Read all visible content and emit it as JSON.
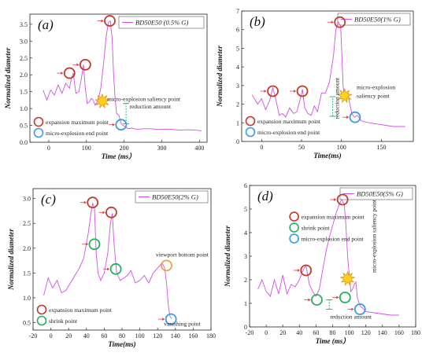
{
  "colors": {
    "series": "#d24fe0",
    "expansion": "#c0392b",
    "shrink": "#27ae60",
    "explosion_end": "#3a9be0",
    "viewport": "#f0a040",
    "burst_fill": "#ffd21f",
    "burst_stroke": "#d08000",
    "arrow": "#e0414d",
    "reduction": "#2bb673"
  },
  "chart_data": [
    {
      "type": "line",
      "panel": "(a)",
      "legend": "BD50E50 (0.5% G)",
      "xlabel": "Time (ms）",
      "ylabel": "Normalized diameter",
      "xlim": [
        -50,
        420
      ],
      "ylim": [
        0,
        3.8
      ],
      "xticks": [
        0,
        100,
        200,
        300,
        400
      ],
      "yticks": [
        0.0,
        0.5,
        1.0,
        1.5,
        2.0,
        2.5,
        3.0,
        3.5
      ],
      "tick_decimals": 1,
      "x": [
        -15,
        -5,
        5,
        15,
        25,
        35,
        45,
        55,
        60,
        65,
        72,
        80,
        86,
        92,
        97,
        102,
        108,
        113,
        118,
        123,
        128,
        133,
        138,
        145,
        152,
        158,
        163,
        168,
        172,
        176,
        180,
        186,
        192,
        198,
        204,
        210,
        220,
        235,
        250,
        270,
        290,
        310,
        330,
        350,
        370,
        390,
        405
      ],
      "y": [
        1.55,
        1.25,
        1.55,
        1.4,
        1.7,
        1.45,
        1.75,
        1.6,
        1.9,
        2.05,
        1.45,
        1.5,
        1.85,
        2.3,
        1.6,
        1.15,
        1.2,
        1.3,
        1.25,
        1.1,
        1.2,
        1.35,
        1.6,
        2.3,
        3.1,
        3.55,
        3.6,
        3.1,
        2.0,
        1.3,
        0.85,
        0.8,
        0.55,
        0.5,
        0.45,
        0.4,
        0.42,
        0.38,
        0.4,
        0.4,
        0.38,
        0.39,
        0.38,
        0.36,
        0.37,
        0.36,
        0.34
      ],
      "markers": [
        {
          "kind": "expansion",
          "x": 55,
          "y": 2.05
        },
        {
          "kind": "expansion",
          "x": 97,
          "y": 2.3
        },
        {
          "kind": "expansion",
          "x": 162,
          "y": 3.6
        },
        {
          "kind": "explosion_end",
          "x": 192,
          "y": 0.52
        }
      ],
      "burst": {
        "x": 142,
        "y": 1.22
      },
      "annotations": [
        {
          "text": "micro-explosion saliency point",
          "x": 155,
          "y": 1.22
        },
        {
          "text": "reduction amount",
          "x": 214,
          "y": 1.0
        }
      ],
      "reduction_bar": {
        "x": 205,
        "y1": 0.55,
        "y2": 1.15
      },
      "legend_items": [
        {
          "kind": "expansion",
          "label": "expansion maximum point"
        },
        {
          "kind": "explosion_end",
          "label": "micro-explosion end point"
        }
      ]
    },
    {
      "type": "line",
      "panel": "(b)",
      "legend": "BD50E50(1% G)",
      "xlabel": "Time(ms)",
      "ylabel": "Normalized diameter",
      "xlim": [
        -25,
        190
      ],
      "ylim": [
        0,
        7
      ],
      "xticks": [
        0,
        50,
        100,
        150
      ],
      "yticks": [
        0,
        1,
        2,
        3,
        4,
        5,
        6,
        7
      ],
      "tick_decimals": 0,
      "x": [
        -12,
        -5,
        0,
        5,
        10,
        14,
        18,
        22,
        26,
        30,
        35,
        40,
        44,
        48,
        51,
        54,
        58,
        62,
        66,
        70,
        75,
        80,
        85,
        90,
        93,
        96,
        99,
        102,
        104,
        106,
        108,
        110,
        113,
        116,
        120,
        125,
        135,
        150,
        165,
        180
      ],
      "y": [
        2.5,
        2.0,
        2.3,
        1.7,
        2.2,
        2.9,
        2.2,
        1.4,
        1.5,
        1.3,
        1.8,
        1.5,
        1.6,
        2.2,
        2.8,
        1.8,
        1.5,
        1.4,
        1.9,
        1.6,
        2.6,
        2.6,
        3.2,
        4.6,
        6.0,
        6.4,
        6.2,
        3.0,
        2.3,
        2.5,
        2.6,
        2.1,
        1.5,
        1.3,
        1.4,
        1.1,
        1.0,
        0.9,
        0.8,
        0.8
      ],
      "markers": [
        {
          "kind": "expansion",
          "x": 14,
          "y": 2.7
        },
        {
          "kind": "expansion",
          "x": 51,
          "y": 2.7
        },
        {
          "kind": "expansion",
          "x": 98,
          "y": 6.4
        },
        {
          "kind": "explosion_end",
          "x": 117,
          "y": 1.3
        }
      ],
      "burst": {
        "x": 104,
        "y": 2.45
      },
      "annotations": [
        {
          "text": "micro-explosion",
          "x": 119,
          "y": 2.8
        },
        {
          "text": "saliency point",
          "x": 119,
          "y": 2.35
        },
        {
          "text": "reduction amount",
          "x": 97,
          "y": 1.2
        }
      ],
      "reduction_bar": {
        "x": 89,
        "y1": 1.35,
        "y2": 2.4
      },
      "legend_items": [
        {
          "kind": "expansion",
          "label": "expansion maximum point"
        },
        {
          "kind": "explosion_end",
          "label": "micro-explosion end point"
        }
      ]
    },
    {
      "type": "line",
      "panel": "(c)",
      "legend": "BD50E50(2% G)",
      "xlabel": "Time(ms)",
      "ylabel": "Normalized diameter",
      "xlim": [
        -20,
        180
      ],
      "ylim": [
        0.35,
        3.2
      ],
      "xticks": [
        -20,
        0,
        20,
        40,
        60,
        80,
        100,
        120,
        140,
        160,
        180
      ],
      "yticks": [
        0.5,
        1.0,
        1.5,
        2.0,
        2.5,
        3.0
      ],
      "tick_decimals": 1,
      "x": [
        -8,
        -3,
        2,
        7,
        12,
        17,
        22,
        27,
        32,
        37,
        42,
        45,
        47,
        49,
        51,
        53,
        56,
        60,
        64,
        67,
        69,
        71,
        74,
        78,
        82,
        86,
        90,
        95,
        100,
        105,
        110,
        115,
        120,
        125,
        128,
        130,
        132,
        134,
        136
      ],
      "y": [
        1.05,
        1.4,
        1.2,
        1.35,
        1.1,
        1.15,
        1.3,
        1.45,
        1.6,
        1.8,
        2.3,
        2.7,
        2.9,
        2.8,
        1.9,
        1.5,
        1.35,
        1.5,
        1.9,
        2.5,
        2.7,
        2.1,
        1.5,
        1.35,
        1.4,
        1.45,
        1.55,
        1.3,
        1.35,
        1.45,
        1.3,
        1.5,
        1.6,
        1.7,
        1.6,
        1.3,
        0.85,
        0.62,
        0.58
      ],
      "markers": [
        {
          "kind": "expansion",
          "x": 47,
          "y": 2.92
        },
        {
          "kind": "expansion",
          "x": 68,
          "y": 2.72
        },
        {
          "kind": "shrink",
          "x": 49,
          "y": 2.08
        },
        {
          "kind": "shrink",
          "x": 73,
          "y": 1.58
        },
        {
          "kind": "viewport",
          "x": 130,
          "y": 1.65
        },
        {
          "kind": "explosion_end",
          "x": 135,
          "y": 0.57
        }
      ],
      "annotations": [
        {
          "text": "viewport bottom point",
          "x": 118,
          "y": 1.83
        },
        {
          "text": "vanishing point",
          "x": 127,
          "y": 0.44
        }
      ],
      "legend_items": [
        {
          "kind": "expansion",
          "label": "expansion maximum point"
        },
        {
          "kind": "shrink",
          "label": "shrink point"
        }
      ]
    },
    {
      "type": "line",
      "panel": "(d)",
      "legend": "BD50E50(5% G)",
      "xlabel": "Time (ms）",
      "ylabel": "Normalized diameter",
      "xlim": [
        -20,
        180
      ],
      "ylim": [
        0,
        6
      ],
      "xticks": [
        -20,
        0,
        20,
        40,
        60,
        80,
        100,
        120,
        140,
        160,
        180
      ],
      "yticks": [
        0,
        1,
        2,
        3,
        4,
        5,
        6
      ],
      "tick_decimals": 0,
      "x": [
        -10,
        -5,
        0,
        5,
        10,
        15,
        20,
        25,
        30,
        35,
        40,
        43,
        46,
        48,
        52,
        56,
        60,
        64,
        68,
        72,
        76,
        80,
        84,
        88,
        91,
        94,
        96,
        98,
        100,
        102,
        104,
        106,
        108,
        110,
        113,
        116,
        120,
        130,
        140,
        150,
        160
      ],
      "y": [
        1.6,
        2.0,
        1.5,
        1.3,
        2.0,
        1.4,
        2.2,
        1.4,
        1.8,
        1.7,
        2.0,
        2.3,
        2.5,
        2.6,
        1.8,
        1.5,
        1.3,
        1.6,
        2.4,
        3.2,
        3.8,
        4.3,
        4.8,
        5.2,
        5.4,
        5.2,
        4.3,
        3.0,
        2.2,
        1.5,
        1.6,
        1.8,
        1.9,
        1.2,
        0.9,
        0.8,
        0.65,
        0.6,
        0.55,
        0.5,
        0.5
      ],
      "markers": [
        {
          "kind": "expansion",
          "x": 48,
          "y": 2.4
        },
        {
          "kind": "expansion",
          "x": 92,
          "y": 5.4
        },
        {
          "kind": "shrink",
          "x": 61,
          "y": 1.15
        },
        {
          "kind": "shrink",
          "x": 95,
          "y": 1.25
        },
        {
          "kind": "explosion_end",
          "x": 113,
          "y": 0.75
        }
      ],
      "burst": {
        "x": 98,
        "y": 2.05
      },
      "annotations": [
        {
          "text": "micro-explosion saliency point",
          "x": 132,
          "y": 2.3
        },
        {
          "text": "reduction amount",
          "x": 77,
          "y": 0.35
        }
      ],
      "reduction_bar": {
        "x": 76,
        "y1": 0.75,
        "y2": 1.15
      },
      "legend_items": [
        {
          "kind": "expansion",
          "label": "expansion maximum point"
        },
        {
          "kind": "shrink",
          "label": "shrink point"
        },
        {
          "kind": "explosion_end",
          "label": "micro-explosion end point"
        }
      ]
    }
  ]
}
